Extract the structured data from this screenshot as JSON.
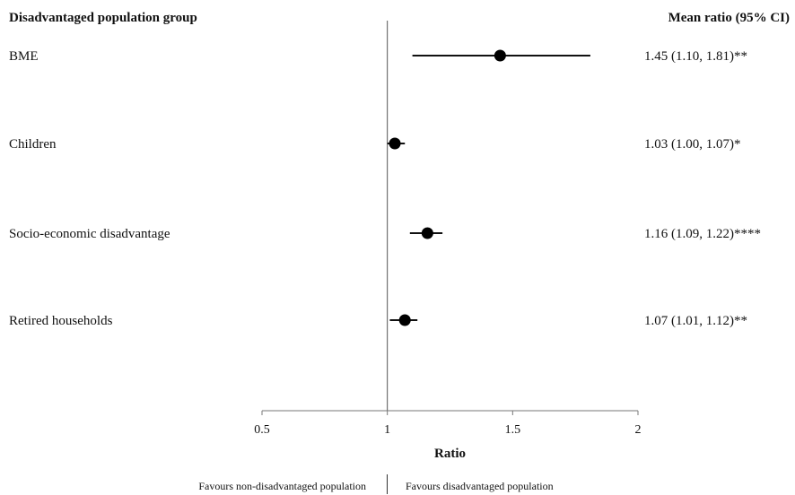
{
  "chart_data": {
    "type": "forest",
    "row_header": "Disadvantaged population group",
    "value_header": "Mean ratio (95% CI)",
    "xlabel": "Ratio",
    "xlim": [
      0.5,
      2
    ],
    "xticks": [
      "0.5",
      "1",
      "1.5",
      "2"
    ],
    "reference_line": 1,
    "rows": [
      {
        "label": "BME",
        "mean": 1.45,
        "lower": 1.1,
        "upper": 1.81,
        "text": "1.45 (1.10, 1.81)**"
      },
      {
        "label": "Children",
        "mean": 1.03,
        "lower": 1.0,
        "upper": 1.07,
        "text": "1.03 (1.00, 1.07)*"
      },
      {
        "label": "Socio-economic disadvantage",
        "mean": 1.16,
        "lower": 1.09,
        "upper": 1.22,
        "text": "1.16 (1.09, 1.22)****"
      },
      {
        "label": "Retired households",
        "mean": 1.07,
        "lower": 1.01,
        "upper": 1.12,
        "text": "1.07 (1.01, 1.12)**"
      }
    ],
    "footer_left": "Favours non-disadvantaged population",
    "footer_right": "Favours disadvantaged population"
  }
}
